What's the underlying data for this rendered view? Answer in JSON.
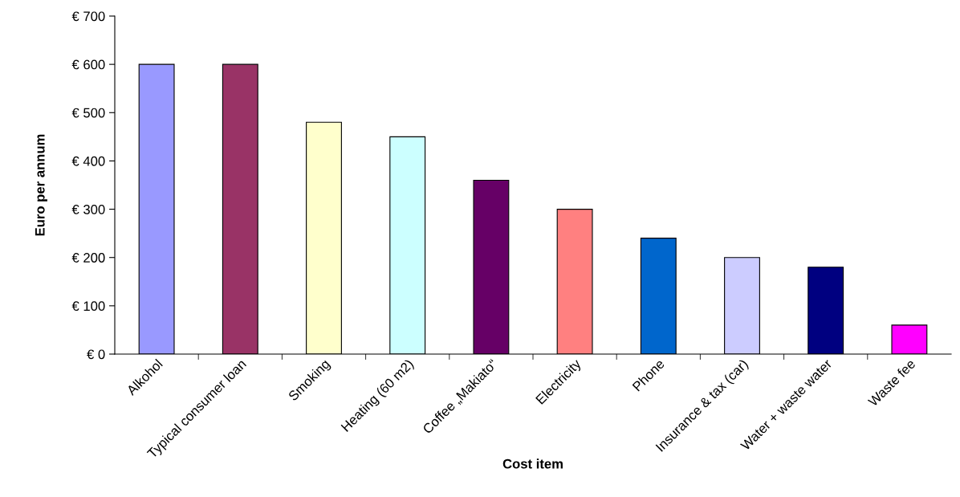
{
  "chart_data": {
    "type": "bar",
    "xlabel": "Cost item",
    "ylabel": "Euro per annum",
    "categories": [
      "Alkohol",
      "Typical consumer loan",
      "Smoking",
      "Heating (60 m2)",
      "Coffee „Makiato“",
      "Electricity",
      "Phone",
      "Insurance & tax (car)",
      "Water + waste water",
      "Waste fee"
    ],
    "values": [
      600,
      600,
      480,
      450,
      360,
      300,
      240,
      200,
      180,
      60
    ],
    "colors": [
      "#9999ff",
      "#993366",
      "#ffffcc",
      "#ccffff",
      "#660066",
      "#ff8080",
      "#0066cc",
      "#ccccff",
      "#000080",
      "#ff00ff"
    ],
    "ylim": [
      0,
      700
    ],
    "yticks": [
      {
        "value": 0,
        "label": "€ 0"
      },
      {
        "value": 100,
        "label": "€ 100"
      },
      {
        "value": 200,
        "label": "€ 200"
      },
      {
        "value": 300,
        "label": "€ 300"
      },
      {
        "value": 400,
        "label": "€ 400"
      },
      {
        "value": 500,
        "label": "€ 500"
      },
      {
        "value": 600,
        "label": "€ 600"
      },
      {
        "value": 700,
        "label": "€ 700"
      }
    ],
    "grid": false,
    "legend": false
  }
}
